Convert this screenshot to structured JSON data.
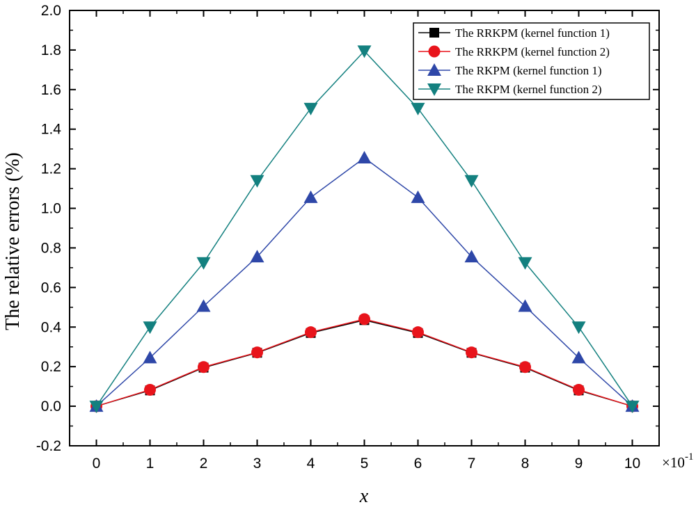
{
  "chart_data": {
    "type": "line",
    "title": "",
    "xlabel": "x",
    "ylabel": "The relative errors (%)",
    "x_multiplier_label": "×10",
    "x_multiplier_exponent": "-1",
    "xlim": [
      -0.5,
      10.5
    ],
    "ylim": [
      -0.2,
      2.0
    ],
    "x": [
      0,
      1,
      2,
      3,
      4,
      5,
      6,
      7,
      8,
      9,
      10
    ],
    "x_ticks": [
      0,
      1,
      2,
      3,
      4,
      5,
      6,
      7,
      8,
      9,
      10
    ],
    "x_tick_labels": [
      "0",
      "1",
      "2",
      "3",
      "4",
      "5",
      "6",
      "7",
      "8",
      "9",
      "10"
    ],
    "y_ticks": [
      -0.2,
      0.0,
      0.2,
      0.4,
      0.6,
      0.8,
      1.0,
      1.2,
      1.4,
      1.6,
      1.8,
      2.0
    ],
    "y_tick_labels": [
      "-0.2",
      "0.0",
      "0.2",
      "0.4",
      "0.6",
      "0.8",
      "1.0",
      "1.2",
      "1.4",
      "1.6",
      "1.8",
      "2.0"
    ],
    "grid": false,
    "legend_position": "top-right",
    "series": [
      {
        "name": "The RRKPM (kernel function 1)",
        "color": "#000000",
        "marker": "square",
        "values": [
          0.0,
          0.08,
          0.195,
          0.27,
          0.37,
          0.435,
          0.37,
          0.27,
          0.195,
          0.08,
          0.0
        ]
      },
      {
        "name": "The RRKPM (kernel function 2)",
        "color": "#e8141b",
        "marker": "circle",
        "values": [
          0.0,
          0.083,
          0.198,
          0.272,
          0.374,
          0.44,
          0.374,
          0.272,
          0.198,
          0.083,
          0.0
        ]
      },
      {
        "name": "The RKPM (kernel function 1)",
        "color": "#2e47a8",
        "marker": "triangle-up",
        "values": [
          0.0,
          0.245,
          0.505,
          0.755,
          1.055,
          1.255,
          1.055,
          0.755,
          0.505,
          0.245,
          0.0
        ]
      },
      {
        "name": "The RKPM (kernel function 2)",
        "color": "#13807f",
        "marker": "triangle-down",
        "values": [
          0.0,
          0.4,
          0.725,
          1.14,
          1.505,
          1.795,
          1.505,
          1.14,
          0.725,
          0.4,
          0.0
        ]
      }
    ]
  }
}
